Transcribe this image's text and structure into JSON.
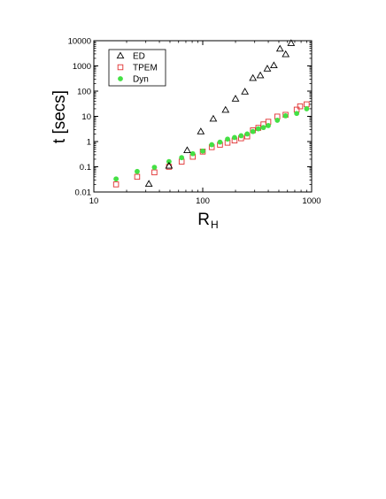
{
  "chart_data": {
    "type": "scatter",
    "title": "",
    "xlabel": "R",
    "xlabel_sub": "H",
    "ylabel": "t [secs]",
    "xscale": "log",
    "yscale": "log",
    "xlim": [
      10,
      1000
    ],
    "ylim": [
      0.01,
      10000
    ],
    "grid": false,
    "legend_position": "top-left",
    "x_ticks": [
      10,
      100,
      1000
    ],
    "x_tick_labels": [
      "10",
      "100",
      "1000"
    ],
    "y_ticks": [
      0.01,
      0.1,
      1,
      10,
      100,
      1000,
      10000
    ],
    "y_tick_labels": [
      "0.01",
      "0.1",
      "1",
      "10",
      "100",
      "1000",
      "10000"
    ],
    "series": [
      {
        "name": "ED",
        "marker": "triangle-open",
        "color": "#000000",
        "x": [
          32,
          49,
          72,
          96,
          125,
          162,
          200,
          244,
          289,
          338,
          392,
          450,
          512,
          578,
          648
        ],
        "y": [
          0.021,
          0.11,
          0.45,
          2.5,
          8,
          18,
          50,
          95,
          330,
          420,
          780,
          1050,
          4800,
          2900,
          8000
        ]
      },
      {
        "name": "TPEM",
        "marker": "square-open",
        "color": "#e03030",
        "x": [
          16,
          25,
          36,
          49,
          64,
          81,
          100,
          121,
          144,
          169,
          196,
          225,
          256,
          289,
          324,
          361,
          400,
          484,
          576,
          729,
          784,
          900
        ],
        "y": [
          0.02,
          0.04,
          0.06,
          0.1,
          0.16,
          0.25,
          0.4,
          0.6,
          0.75,
          0.9,
          1.1,
          1.35,
          1.6,
          2.8,
          3.5,
          4.8,
          6.1,
          9.8,
          11.5,
          18.5,
          25,
          30
        ]
      },
      {
        "name": "Dyn",
        "marker": "circle-filled",
        "color": "#44e044",
        "x": [
          16,
          25,
          36,
          49,
          64,
          81,
          100,
          121,
          144,
          169,
          196,
          225,
          256,
          289,
          324,
          361,
          400,
          484,
          576,
          729,
          900
        ],
        "y": [
          0.033,
          0.065,
          0.095,
          0.16,
          0.23,
          0.33,
          0.42,
          0.75,
          0.95,
          1.25,
          1.45,
          1.7,
          2.0,
          2.5,
          3.2,
          3.6,
          4.3,
          7.0,
          10.5,
          13,
          20
        ]
      }
    ]
  }
}
